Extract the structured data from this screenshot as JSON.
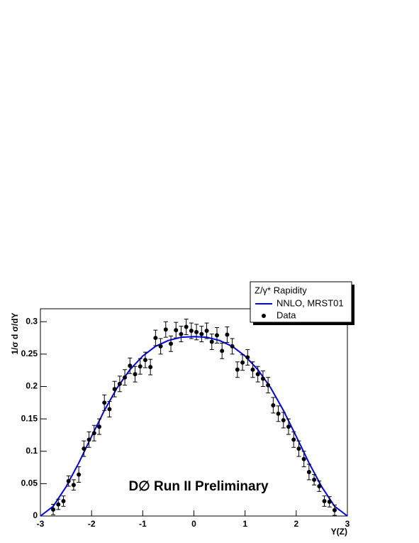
{
  "chart_data": {
    "type": "scatter",
    "xlabel": "Y(Z)",
    "ylabel": "1/σ  d σ/dY",
    "annotation": "D∅ Run II Preliminary",
    "legend_title": "Z/γ* Rapidity",
    "legend": "upper right",
    "xlim": [
      -3,
      3
    ],
    "xticks": [
      -3,
      -2,
      -1,
      0,
      1,
      2,
      3
    ],
    "ylim": [
      0,
      0.32
    ],
    "yticks": [
      0,
      0.05,
      0.1,
      0.15,
      0.2,
      0.25,
      0.3
    ],
    "series": [
      {
        "name": "NNLO, MRST01",
        "color": "#0000ff",
        "type": "line",
        "x": [
          -3,
          -2.75,
          -2.5,
          -2.25,
          -2,
          -1.75,
          -1.5,
          -1.25,
          -1,
          -0.75,
          -0.5,
          -0.25,
          0,
          0.25,
          0.5,
          0.75,
          1,
          1.25,
          1.5,
          1.75,
          2,
          2.25,
          2.5,
          2.75,
          3
        ],
        "values": [
          0,
          0.015,
          0.045,
          0.082,
          0.123,
          0.163,
          0.198,
          0.226,
          0.247,
          0.262,
          0.271,
          0.276,
          0.277,
          0.276,
          0.271,
          0.262,
          0.247,
          0.226,
          0.198,
          0.163,
          0.123,
          0.082,
          0.045,
          0.015,
          0
        ]
      },
      {
        "name": "Data",
        "color": "#000000",
        "type": "scatter",
        "x": [
          -2.75,
          -2.65,
          -2.55,
          -2.45,
          -2.35,
          -2.25,
          -2.15,
          -2.05,
          -1.95,
          -1.85,
          -1.75,
          -1.65,
          -1.55,
          -1.45,
          -1.35,
          -1.25,
          -1.15,
          -1.05,
          -0.95,
          -0.85,
          -0.75,
          -0.65,
          -0.55,
          -0.45,
          -0.35,
          -0.25,
          -0.15,
          -0.05,
          0.05,
          0.15,
          0.25,
          0.35,
          0.45,
          0.55,
          0.65,
          0.75,
          0.85,
          0.95,
          1.05,
          1.15,
          1.25,
          1.35,
          1.45,
          1.55,
          1.65,
          1.75,
          1.85,
          1.95,
          2.05,
          2.15,
          2.25,
          2.35,
          2.45,
          2.55,
          2.65,
          2.75
        ],
        "values": [
          0.01,
          0.018,
          0.023,
          0.054,
          0.048,
          0.064,
          0.104,
          0.118,
          0.128,
          0.138,
          0.175,
          0.165,
          0.196,
          0.204,
          0.214,
          0.232,
          0.219,
          0.231,
          0.241,
          0.23,
          0.275,
          0.262,
          0.288,
          0.266,
          0.287,
          0.281,
          0.292,
          0.286,
          0.284,
          0.281,
          0.286,
          0.269,
          0.279,
          0.255,
          0.28,
          0.262,
          0.226,
          0.237,
          0.245,
          0.226,
          0.219,
          0.212,
          0.202,
          0.171,
          0.158,
          0.148,
          0.138,
          0.118,
          0.104,
          0.088,
          0.068,
          0.056,
          0.046,
          0.023,
          0.022,
          0.009
        ],
        "errors": [
          0.008,
          0.008,
          0.008,
          0.008,
          0.008,
          0.012,
          0.012,
          0.012,
          0.012,
          0.012,
          0.012,
          0.012,
          0.012,
          0.012,
          0.012,
          0.012,
          0.012,
          0.012,
          0.012,
          0.012,
          0.012,
          0.012,
          0.012,
          0.012,
          0.012,
          0.012,
          0.012,
          0.012,
          0.012,
          0.012,
          0.012,
          0.012,
          0.012,
          0.012,
          0.012,
          0.012,
          0.012,
          0.012,
          0.012,
          0.012,
          0.012,
          0.012,
          0.012,
          0.012,
          0.012,
          0.012,
          0.012,
          0.012,
          0.012,
          0.012,
          0.012,
          0.008,
          0.008,
          0.008,
          0.008,
          0.008
        ]
      }
    ]
  }
}
